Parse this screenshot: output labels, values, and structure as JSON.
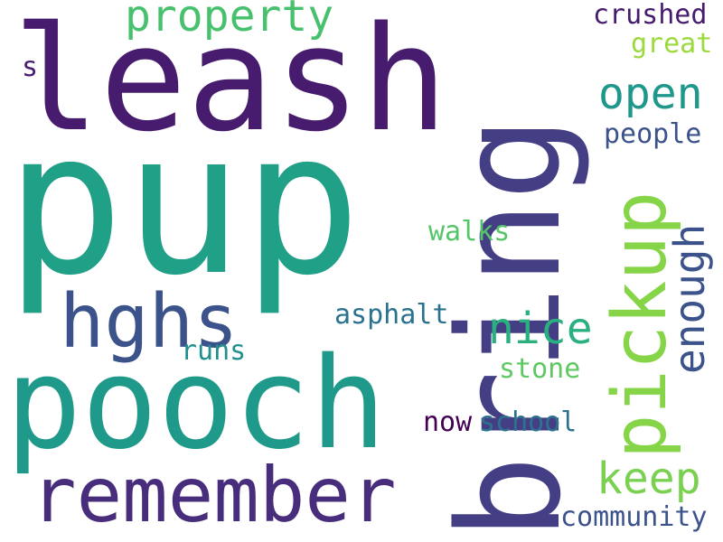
{
  "background": "#ffffff",
  "palette": {
    "dark_purple": "#440154",
    "indigo": "#472d7b",
    "blue_slate": "#3b528b",
    "steel_blue": "#2c728e",
    "teal": "#21918c",
    "sea_green": "#28ae80",
    "green": "#5ec962",
    "lime": "#addc30"
  },
  "words": {
    "pup": {
      "text": "pup",
      "color": "#21a088",
      "orientation": "horizontal"
    },
    "leash": {
      "text": "leash",
      "color": "#471b6e",
      "orientation": "horizontal"
    },
    "bring": {
      "text": "bring",
      "color": "#443f85",
      "orientation": "vertical"
    },
    "pooch": {
      "text": "pooch",
      "color": "#1f9a8a",
      "orientation": "horizontal"
    },
    "remember": {
      "text": "remember",
      "color": "#472d7b",
      "orientation": "horizontal"
    },
    "hghs": {
      "text": "hghs",
      "color": "#3b528b",
      "orientation": "horizontal"
    },
    "pickup": {
      "text": "pickup",
      "color": "#86d549",
      "orientation": "vertical"
    },
    "property": {
      "text": "property",
      "color": "#48c16e",
      "orientation": "horizontal"
    },
    "open": {
      "text": "open",
      "color": "#1f978b",
      "orientation": "horizontal"
    },
    "nice": {
      "text": "nice",
      "color": "#2ab07f",
      "orientation": "horizontal"
    },
    "keep": {
      "text": "keep",
      "color": "#7ad151",
      "orientation": "horizontal"
    },
    "enough": {
      "text": "enough",
      "color": "#3b528b",
      "orientation": "vertical"
    },
    "crushed": {
      "text": "crushed",
      "color": "#471b6e",
      "orientation": "horizontal"
    },
    "great": {
      "text": "great",
      "color": "#9bd93c",
      "orientation": "horizontal"
    },
    "people": {
      "text": "people",
      "color": "#3b528b",
      "orientation": "horizontal"
    },
    "walks": {
      "text": "walks",
      "color": "#54c568",
      "orientation": "horizontal"
    },
    "asphalt": {
      "text": "asphalt",
      "color": "#2c728e",
      "orientation": "horizontal"
    },
    "runs": {
      "text": "runs",
      "color": "#218f8d",
      "orientation": "horizontal"
    },
    "stone": {
      "text": "stone",
      "color": "#5ec962",
      "orientation": "horizontal"
    },
    "now": {
      "text": "now",
      "color": "#440154",
      "orientation": "horizontal"
    },
    "school": {
      "text": "school",
      "color": "#2c728e",
      "orientation": "horizontal"
    },
    "community": {
      "text": "community",
      "color": "#3b528b",
      "orientation": "horizontal"
    },
    "s": {
      "text": "s",
      "color": "#471b6e",
      "orientation": "horizontal"
    }
  }
}
